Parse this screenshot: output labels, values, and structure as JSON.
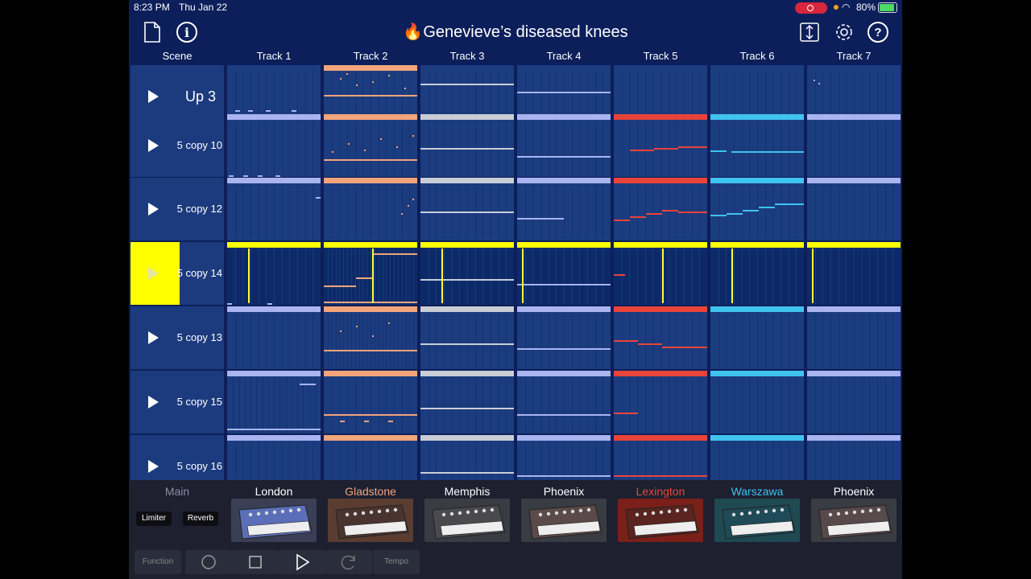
{
  "status": {
    "time": "8:23 PM",
    "date": "Thu Jan 22",
    "battery": "80%"
  },
  "header": {
    "title": "🔥Genevieve’s diseased knees"
  },
  "columns": {
    "scene": "Scene",
    "tracks": [
      "Track 1",
      "Track 2",
      "Track 3",
      "Track 4",
      "Track 5",
      "Track 6",
      "Track 7"
    ]
  },
  "scenes": [
    "Up 3",
    "5 copy 10",
    "5 copy 12",
    "5 copy 14",
    "5 copy 13",
    "5 copy 15",
    "5 copy 16"
  ],
  "track_colors": [
    "#a9b4f0",
    "#f3a47a",
    "#c9cdd6",
    "#a9b4f0",
    "#e8443a",
    "#3fc3ef",
    "#a9b4f0"
  ],
  "active_scene_color": "#ffff00",
  "instruments": {
    "main_label": "Main",
    "fx": [
      "Limiter",
      "Reverb"
    ],
    "names": [
      "London",
      "Gladstone",
      "Memphis",
      "Phoenix",
      "Lexington",
      "Warszawa",
      "Phoenix"
    ],
    "name_colors": [
      "#ffffff",
      "#f3a47a",
      "#ffffff",
      "#ffffff",
      "#e8443a",
      "#3fc3ef",
      "#ffffff"
    ]
  },
  "transport": {
    "function": "Function",
    "tempo": "Tempo"
  }
}
